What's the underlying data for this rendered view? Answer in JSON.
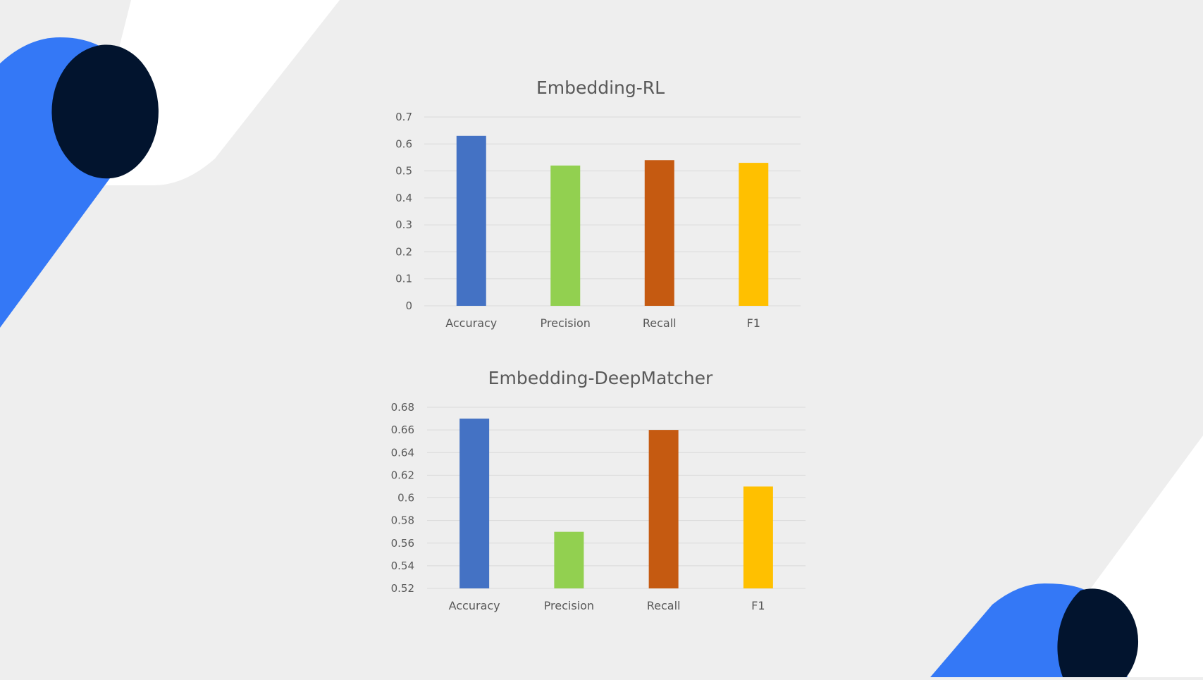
{
  "theme": {
    "background": "#eeeeee",
    "shape_white": "#ffffff",
    "shape_blue": "#3478f6",
    "shape_navy": "#02142e",
    "grid_color": "#d9d9d9",
    "text_color": "#595959"
  },
  "chart_data": [
    {
      "type": "bar",
      "title": "Embedding-RL",
      "categories": [
        "Accuracy",
        "Precision",
        "Recall",
        "F1"
      ],
      "values": [
        0.63,
        0.52,
        0.54,
        0.53
      ],
      "colors": [
        "#4472c4",
        "#92d050",
        "#c55a11",
        "#ffc000"
      ],
      "ylim": [
        0,
        0.7
      ],
      "yticks": [
        "0",
        "0.1",
        "0.2",
        "0.3",
        "0.4",
        "0.5",
        "0.6",
        "0.7"
      ],
      "xlabel": "",
      "ylabel": "",
      "grid": true,
      "legend": "none"
    },
    {
      "type": "bar",
      "title": "Embedding-DeepMatcher",
      "categories": [
        "Accuracy",
        "Precision",
        "Recall",
        "F1"
      ],
      "values": [
        0.67,
        0.57,
        0.66,
        0.61
      ],
      "colors": [
        "#4472c4",
        "#92d050",
        "#c55a11",
        "#ffc000"
      ],
      "ylim": [
        0.52,
        0.68
      ],
      "yticks": [
        "0.52",
        "0.54",
        "0.56",
        "0.58",
        "0.6",
        "0.62",
        "0.64",
        "0.66",
        "0.68"
      ],
      "xlabel": "",
      "ylabel": "",
      "grid": true,
      "legend": "none"
    }
  ]
}
